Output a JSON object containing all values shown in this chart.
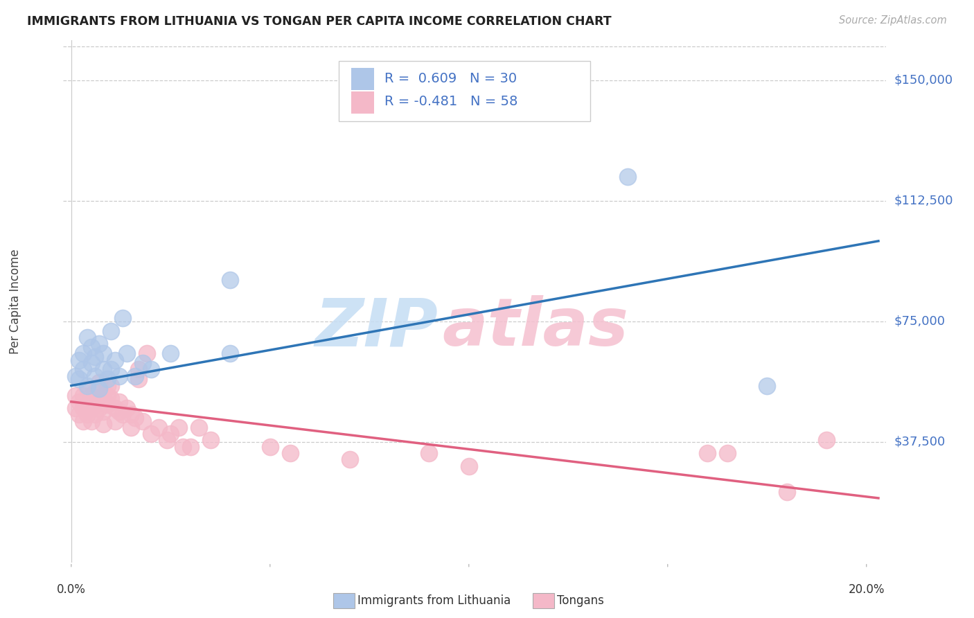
{
  "title": "IMMIGRANTS FROM LITHUANIA VS TONGAN PER CAPITA INCOME CORRELATION CHART",
  "source": "Source: ZipAtlas.com",
  "ylabel": "Per Capita Income",
  "ytick_values": [
    37500,
    75000,
    112500,
    150000
  ],
  "ytick_labels": [
    "$37,500",
    "$75,000",
    "$112,500",
    "$150,000"
  ],
  "ylim": [
    0,
    162500
  ],
  "xlim": [
    -0.002,
    0.205
  ],
  "xtick_left_label": "0.0%",
  "xtick_right_label": "20.0%",
  "legend_label1": "R =  0.609   N = 30",
  "legend_label2": "R = -0.481   N = 58",
  "legend_text_color1": "#4472c4",
  "legend_text_color2": "#4472c4",
  "blue_scatter_color": "#aec6e8",
  "pink_scatter_color": "#f4b8c8",
  "blue_line_color": "#2e75b6",
  "pink_line_color": "#e06080",
  "ytick_color": "#4472c4",
  "blue_scatter_x": [
    0.001,
    0.002,
    0.002,
    0.003,
    0.003,
    0.004,
    0.004,
    0.005,
    0.005,
    0.006,
    0.006,
    0.007,
    0.007,
    0.008,
    0.008,
    0.009,
    0.01,
    0.011,
    0.012,
    0.013,
    0.014,
    0.016,
    0.018,
    0.02,
    0.025,
    0.04,
    0.04,
    0.14,
    0.175,
    0.01
  ],
  "blue_scatter_y": [
    58000,
    63000,
    57000,
    65000,
    60000,
    55000,
    70000,
    62000,
    67000,
    58000,
    64000,
    68000,
    54000,
    60000,
    65000,
    57000,
    72000,
    63000,
    58000,
    76000,
    65000,
    58000,
    62000,
    60000,
    65000,
    88000,
    65000,
    120000,
    55000,
    60000
  ],
  "pink_scatter_x": [
    0.001,
    0.001,
    0.002,
    0.002,
    0.003,
    0.003,
    0.003,
    0.004,
    0.004,
    0.004,
    0.005,
    0.005,
    0.005,
    0.006,
    0.006,
    0.006,
    0.007,
    0.007,
    0.007,
    0.008,
    0.008,
    0.009,
    0.009,
    0.01,
    0.01,
    0.011,
    0.011,
    0.012,
    0.012,
    0.013,
    0.014,
    0.015,
    0.015,
    0.016,
    0.017,
    0.017,
    0.018,
    0.019,
    0.02,
    0.022,
    0.024,
    0.025,
    0.027,
    0.028,
    0.03,
    0.032,
    0.035,
    0.05,
    0.055,
    0.07,
    0.09,
    0.1,
    0.16,
    0.165,
    0.18,
    0.19,
    0.008,
    0.009
  ],
  "pink_scatter_y": [
    52000,
    48000,
    50000,
    46000,
    52000,
    48000,
    44000,
    54000,
    49000,
    46000,
    52000,
    48000,
    44000,
    53000,
    50000,
    46000,
    56000,
    51000,
    48000,
    52000,
    47000,
    52000,
    49000,
    55000,
    51000,
    48000,
    44000,
    50000,
    47000,
    46000,
    48000,
    46000,
    42000,
    45000,
    60000,
    57000,
    44000,
    65000,
    40000,
    42000,
    38000,
    40000,
    42000,
    36000,
    36000,
    42000,
    38000,
    36000,
    34000,
    32000,
    34000,
    30000,
    34000,
    34000,
    22000,
    38000,
    43000,
    55000
  ],
  "blue_line_x0": 0.0,
  "blue_line_x1": 0.203,
  "blue_line_y0": 55000,
  "blue_line_y1": 100000,
  "pink_line_x0": 0.0,
  "pink_line_x1": 0.203,
  "pink_line_y0": 50000,
  "pink_line_y1": 20000,
  "watermark_zip": "ZIP",
  "watermark_atlas": "atlas",
  "bottom_legend_label1": "Immigrants from Lithuania",
  "bottom_legend_label2": "Tongans"
}
